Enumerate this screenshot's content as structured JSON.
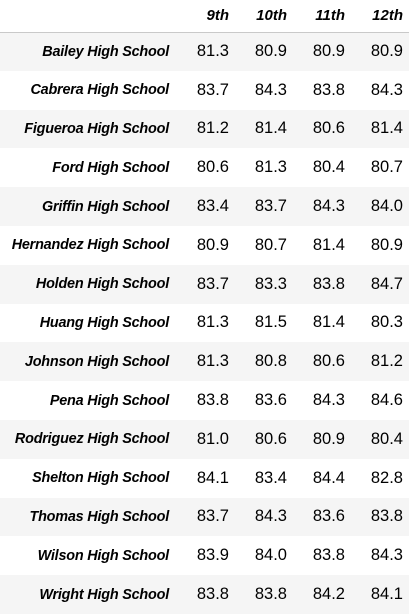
{
  "table": {
    "columns": [
      "",
      "9th",
      "10th",
      "11th",
      "12th"
    ],
    "rows": [
      {
        "school": "Bailey High School",
        "values": [
          "81.3",
          "80.9",
          "80.9",
          "80.9"
        ]
      },
      {
        "school": "Cabrera High School",
        "values": [
          "83.7",
          "84.3",
          "83.8",
          "84.3"
        ]
      },
      {
        "school": "Figueroa High School",
        "values": [
          "81.2",
          "81.4",
          "80.6",
          "81.4"
        ]
      },
      {
        "school": "Ford High School",
        "values": [
          "80.6",
          "81.3",
          "80.4",
          "80.7"
        ]
      },
      {
        "school": "Griffin High School",
        "values": [
          "83.4",
          "83.7",
          "84.3",
          "84.0"
        ]
      },
      {
        "school": "Hernandez High School",
        "values": [
          "80.9",
          "80.7",
          "81.4",
          "80.9"
        ]
      },
      {
        "school": "Holden High School",
        "values": [
          "83.7",
          "83.3",
          "83.8",
          "84.7"
        ]
      },
      {
        "school": "Huang High School",
        "values": [
          "81.3",
          "81.5",
          "81.4",
          "80.3"
        ]
      },
      {
        "school": "Johnson High School",
        "values": [
          "81.3",
          "80.8",
          "80.6",
          "81.2"
        ]
      },
      {
        "school": "Pena High School",
        "values": [
          "83.8",
          "83.6",
          "84.3",
          "84.6"
        ]
      },
      {
        "school": "Rodriguez High School",
        "values": [
          "81.0",
          "80.6",
          "80.9",
          "80.4"
        ]
      },
      {
        "school": "Shelton High School",
        "values": [
          "84.1",
          "83.4",
          "84.4",
          "82.8"
        ]
      },
      {
        "school": "Thomas High School",
        "values": [
          "83.7",
          "84.3",
          "83.6",
          "83.8"
        ]
      },
      {
        "school": "Wilson High School",
        "values": [
          "83.9",
          "84.0",
          "83.8",
          "84.3"
        ]
      },
      {
        "school": "Wright High School",
        "values": [
          "83.8",
          "83.8",
          "84.2",
          "84.1"
        ]
      }
    ]
  },
  "colors": {
    "stripe": "#f5f5f5",
    "header_rule": "#c9c9c9"
  }
}
